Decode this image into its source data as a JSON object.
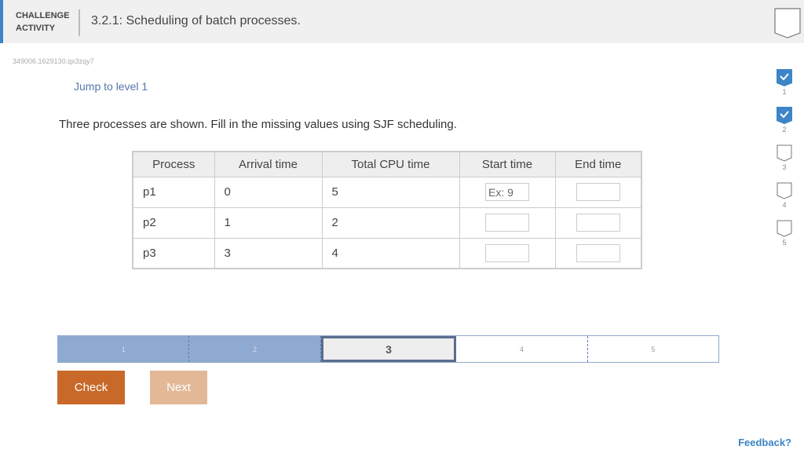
{
  "header": {
    "label_line1": "CHALLENGE",
    "label_line2": "ACTIVITY",
    "title": "3.2.1: Scheduling of batch processes."
  },
  "activity_code": "349006.1629130.qx3zqy7",
  "jump_link": "Jump to level 1",
  "instructions": "Three processes are shown. Fill in the missing values using SJF scheduling.",
  "table": {
    "headers": [
      "Process",
      "Arrival time",
      "Total CPU time",
      "Start time",
      "End time"
    ],
    "rows": [
      {
        "process": "p1",
        "arrival": "0",
        "cpu": "5"
      },
      {
        "process": "p2",
        "arrival": "1",
        "cpu": "2"
      },
      {
        "process": "p3",
        "arrival": "3",
        "cpu": "4"
      }
    ],
    "start_placeholder": "Ex: 9"
  },
  "levels": [
    {
      "n": "1",
      "done": true
    },
    {
      "n": "2",
      "done": true
    },
    {
      "n": "3",
      "done": false
    },
    {
      "n": "4",
      "done": false
    },
    {
      "n": "5",
      "done": false
    }
  ],
  "progress": {
    "segments": [
      "1",
      "2",
      "3",
      "4",
      "5"
    ],
    "current": "3"
  },
  "buttons": {
    "check": "Check",
    "next": "Next"
  },
  "feedback": "Feedback?",
  "colors": {
    "accent": "#3d85c6",
    "check": "#c8692a",
    "next": "#e3b897"
  }
}
